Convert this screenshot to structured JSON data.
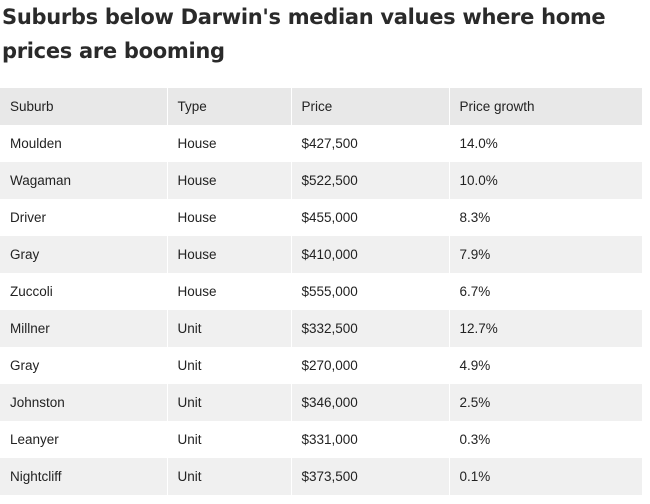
{
  "title": "Suburbs below Darwin's median values where home prices are booming",
  "table": {
    "headers": [
      "Suburb",
      "Type",
      "Price",
      "Price growth"
    ],
    "rows": [
      [
        "Moulden",
        "House",
        "$427,500",
        "14.0%"
      ],
      [
        "Wagaman",
        "House",
        "$522,500",
        "10.0%"
      ],
      [
        "Driver",
        "House",
        "$455,000",
        "8.3%"
      ],
      [
        "Gray",
        "House",
        "$410,000",
        "7.9%"
      ],
      [
        "Zuccoli",
        "House",
        "$555,000",
        "6.7%"
      ],
      [
        "Millner",
        "Unit",
        "$332,500",
        "12.7%"
      ],
      [
        "Gray",
        "Unit",
        "$270,000",
        "4.9%"
      ],
      [
        "Johnston",
        "Unit",
        "$346,000",
        "2.5%"
      ],
      [
        "Leanyer",
        "Unit",
        "$331,000",
        "0.3%"
      ],
      [
        "Nightcliff",
        "Unit",
        "$373,500",
        "0.1%"
      ]
    ]
  }
}
